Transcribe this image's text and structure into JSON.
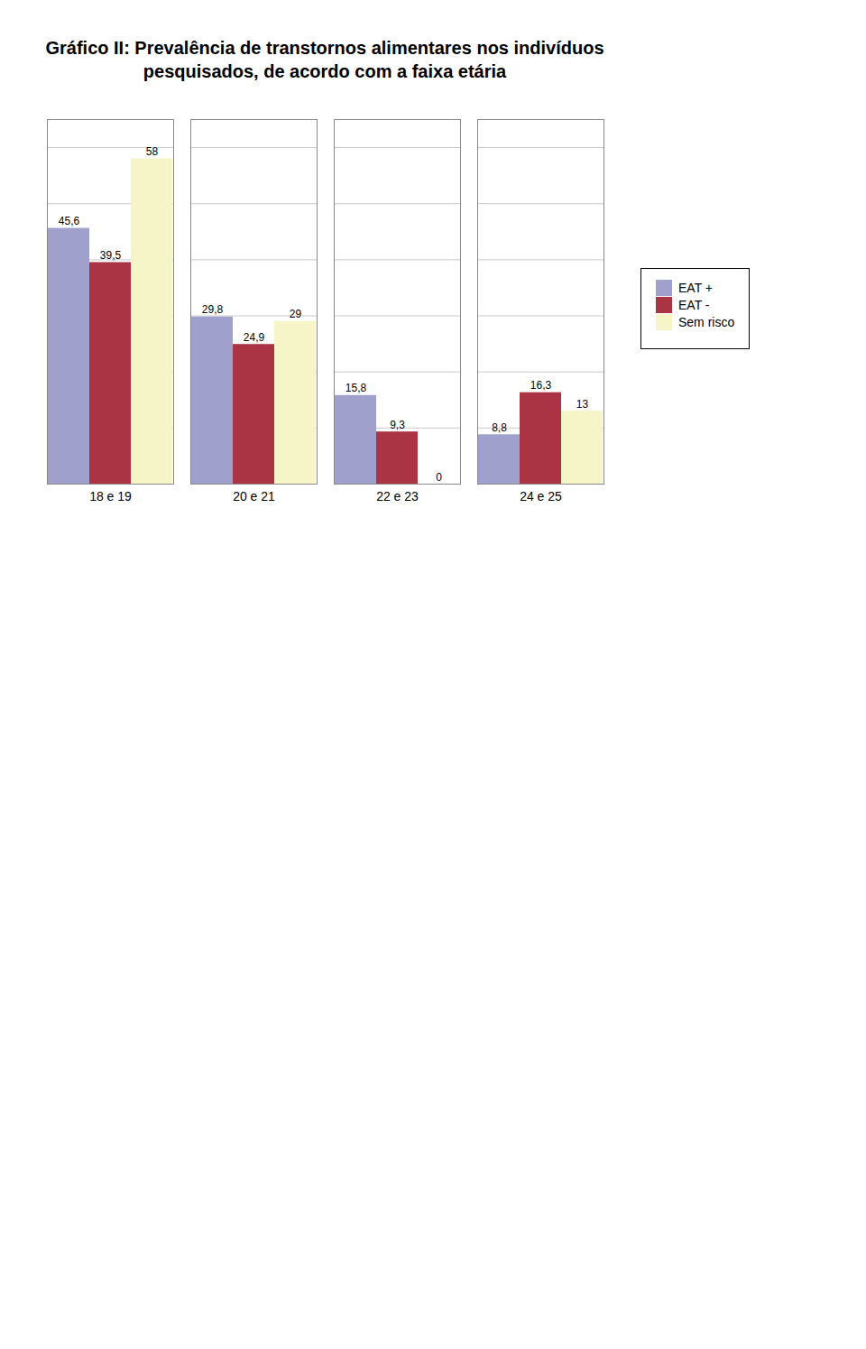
{
  "chart_data": {
    "type": "bar",
    "title": "Gráfico II: Prevalência de transtornos alimentares nos indivíduos pesquisados, de acordo com a faixa etária",
    "categories": [
      "18 e 19",
      "20 e 21",
      "22 e 23",
      "24 e 25"
    ],
    "series": [
      {
        "name": "EAT +",
        "color": "#a0a0cc",
        "values": [
          45.6,
          29.8,
          15.8,
          8.8
        ],
        "value_labels": [
          "45,6",
          "29,8",
          "15,8",
          "8,8"
        ]
      },
      {
        "name": "EAT -",
        "color": "#aa3344",
        "values": [
          39.5,
          24.9,
          9.3,
          16.3
        ],
        "value_labels": [
          "39,5",
          "24,9",
          "9,3",
          "16,3"
        ]
      },
      {
        "name": "Sem risco",
        "color": "#f5f5c8",
        "values": [
          58.0,
          29.0,
          0.0,
          13.0
        ],
        "value_labels": [
          "58",
          "29",
          "0",
          "13"
        ]
      }
    ],
    "ylim": [
      0,
      65
    ],
    "yticks": [
      0,
      10,
      20,
      30,
      40,
      50,
      60
    ],
    "grid": true,
    "legend": "right",
    "data_labels": true,
    "tick_labels": "x"
  }
}
